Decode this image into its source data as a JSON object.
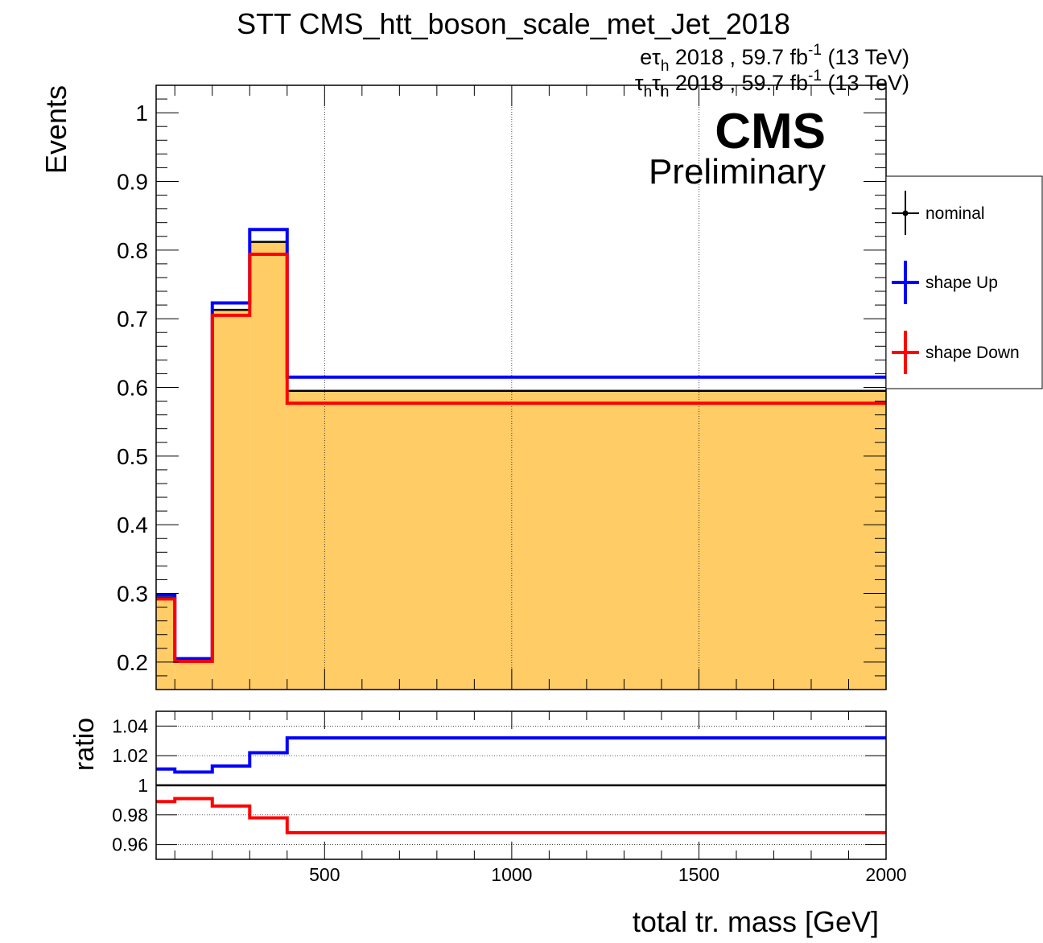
{
  "title": "STT CMS_htt_boson_scale_met_Jet_2018",
  "lumi_lines": [
    {
      "ch_main": "eτ",
      "ch_sub": "h",
      "ch_main2": "",
      "ch_sub2": "",
      "text": " 2018 , 59.7 fb",
      "sup": "-1",
      "energy": " (13 TeV)"
    },
    {
      "ch_main": "τ",
      "ch_sub": "h",
      "ch_main2": "τ",
      "ch_sub2": "h",
      "text": " 2018 , 59.7 fb",
      "sup": "-1",
      "energy": " (13 TeV)"
    }
  ],
  "cms_label": "CMS",
  "preliminary_label": "Preliminary",
  "colors": {
    "nominal": "#000000",
    "up": "#0000ff",
    "down": "#ff0000",
    "fill": "#ffcc66"
  },
  "chart_data": [
    {
      "type": "histogram-step",
      "panel": "main",
      "xlabel": "",
      "ylabel": "Events",
      "xlim": [
        50,
        2000
      ],
      "ylim": [
        0.16,
        1.04
      ],
      "yticks": [
        0.2,
        0.3,
        0.4,
        0.5,
        0.6,
        0.7,
        0.8,
        0.9,
        1
      ],
      "xgrid": [
        500,
        1000,
        1500
      ],
      "bin_edges": [
        50,
        100,
        200,
        300,
        400,
        2000
      ],
      "series": [
        {
          "name": "nominal",
          "values": [
            0.294,
            0.203,
            0.713,
            0.812,
            0.595
          ]
        },
        {
          "name": "shape Up",
          "values": [
            0.298,
            0.205,
            0.723,
            0.83,
            0.615
          ]
        },
        {
          "name": "shape Down",
          "values": [
            0.292,
            0.201,
            0.705,
            0.794,
            0.577
          ]
        }
      ],
      "legend": {
        "position": "right",
        "entries": [
          "nominal",
          "shape Up",
          "shape Down"
        ]
      }
    },
    {
      "type": "histogram-step",
      "panel": "ratio",
      "xlabel": "total tr. mass [GeV]",
      "ylabel": "ratio",
      "xlim": [
        50,
        2000
      ],
      "ylim": [
        0.95,
        1.05
      ],
      "yticks": [
        0.96,
        0.98,
        1,
        1.02,
        1.04
      ],
      "ytick_labels": [
        "0.96",
        "0.98",
        "1",
        "1.02",
        "1.04"
      ],
      "xticks": [
        500,
        1000,
        1500,
        2000
      ],
      "bin_edges": [
        50,
        100,
        200,
        300,
        400,
        2000
      ],
      "series": [
        {
          "name": "shape Up",
          "values": [
            1.011,
            1.009,
            1.013,
            1.022,
            1.032
          ]
        },
        {
          "name": "shape Down",
          "values": [
            0.989,
            0.991,
            0.986,
            0.978,
            0.968
          ]
        }
      ]
    }
  ]
}
